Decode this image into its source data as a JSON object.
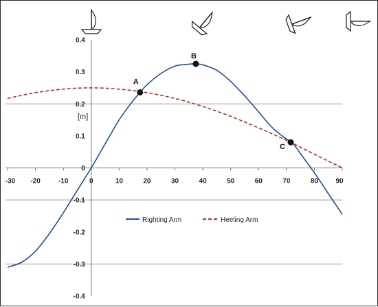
{
  "chart_data": {
    "type": "line",
    "ylabel": "[m]",
    "xlim": [
      -30,
      90
    ],
    "ylim": [
      -0.4,
      0.4
    ],
    "x_ticks": [
      -30,
      -20,
      -10,
      0,
      10,
      20,
      30,
      40,
      50,
      60,
      70,
      80,
      90
    ],
    "y_ticks": [
      -0.4,
      -0.3,
      -0.2,
      -0.1,
      0,
      0.1,
      0.2,
      0.3,
      0.4
    ],
    "x_tick_labels": [
      "-30",
      "-20",
      "-10",
      "0",
      "10",
      "20",
      "30",
      "40",
      "50",
      "60",
      "70",
      "80",
      "90"
    ],
    "y_tick_labels": [
      "-0.4",
      "-0.3",
      "-0.2",
      "-0.1",
      "0",
      "0.1",
      "0.2",
      "0.3",
      "0.4"
    ],
    "gridlines_y": [
      0.2,
      -0.1,
      -0.3
    ],
    "series": [
      {
        "name": "Righting Arm",
        "color": "#1f4e9c",
        "style": "solid",
        "x": [
          -30,
          -25,
          -20,
          -15,
          -10,
          -5,
          0,
          5,
          10,
          15,
          17.5,
          20,
          25,
          30,
          35,
          37.5,
          40,
          45,
          50,
          55,
          60,
          65,
          70,
          72,
          75,
          80,
          85,
          90
        ],
        "y": [
          -0.31,
          -0.295,
          -0.26,
          -0.205,
          -0.14,
          -0.07,
          0,
          0.075,
          0.15,
          0.21,
          0.236,
          0.26,
          0.295,
          0.318,
          0.324,
          0.325,
          0.322,
          0.305,
          0.27,
          0.225,
          0.175,
          0.125,
          0.09,
          0.08,
          0.045,
          -0.015,
          -0.08,
          -0.145
        ]
      },
      {
        "name": "Heeling Arm",
        "color": "#c0281c",
        "style": "dashed",
        "x": [
          -30,
          -20,
          -10,
          0,
          10,
          20,
          30,
          40,
          50,
          60,
          70,
          80,
          90
        ],
        "y": [
          0.217,
          0.235,
          0.246,
          0.25,
          0.246,
          0.235,
          0.217,
          0.192,
          0.161,
          0.125,
          0.086,
          0.043,
          0.0
        ]
      }
    ],
    "points": [
      {
        "label": "A",
        "x": 17.5,
        "y": 0.236
      },
      {
        "label": "B",
        "x": 37.5,
        "y": 0.325
      },
      {
        "label": "C",
        "x": 71.5,
        "y": 0.08
      }
    ],
    "legend": {
      "placement": "center-bottom",
      "items": [
        "Righting Arm",
        "Heeling Arm"
      ]
    },
    "boat_icons": [
      {
        "angle": 0
      },
      {
        "angle": 40
      },
      {
        "angle": 70
      },
      {
        "angle": 90
      }
    ]
  }
}
